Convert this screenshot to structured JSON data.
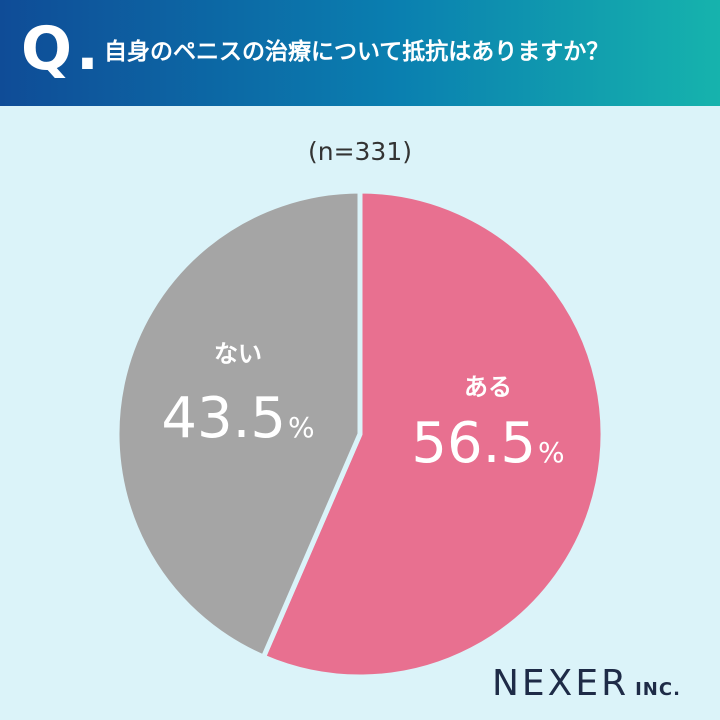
{
  "header": {
    "q_mark": "Q",
    "q_dot": ".",
    "question": "自身のペニスの治療について抵抗はありますか？"
  },
  "sample_size": "(n=331)",
  "chart_data": {
    "type": "pie",
    "title": "自身のペニスの治療について抵抗はありますか？",
    "subtitle": "(n=331)",
    "slices": [
      {
        "label": "ある",
        "value": 56.5,
        "value_text": "56.5",
        "unit": "%",
        "color": "#e87090"
      },
      {
        "label": "ない",
        "value": 43.5,
        "value_text": "43.5",
        "unit": "%",
        "color": "#a5a5a5"
      }
    ],
    "start_angle_deg": 0,
    "direction": "clockwise"
  },
  "logo": {
    "main": "NEXER",
    "sub": "INC."
  },
  "colors": {
    "header_start": "#0f4c97",
    "header_end": "#16b3ad",
    "background": "#dbf3f9",
    "label_text": "#ffffff"
  }
}
